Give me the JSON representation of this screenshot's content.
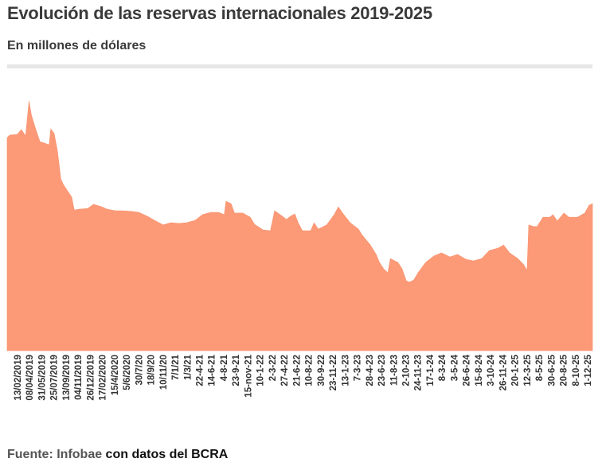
{
  "header": {
    "title": "Evolución de las reservas internacionales 2019-2025",
    "subtitle": "En millones de dólares"
  },
  "footer": {
    "source_prefix": "Fuente: Infobae",
    "source_suffix": " con datos del BCRA"
  },
  "colors": {
    "area": "#fc9a78",
    "text": "#3a3a3a"
  },
  "chart_data": {
    "type": "area",
    "title": "Evolución de las reservas internacionales 2019-2025",
    "subtitle": "En millones de dólares",
    "xlabel": "",
    "ylabel": "Millones de dólares",
    "xlim": [
      2019.0,
      2025.98
    ],
    "ylim": [
      0,
      87600
    ],
    "grid": false,
    "legend": "none",
    "tick_labels": [
      "13/02/2019",
      "08/04/2019",
      "31/05/2019",
      "25/07/2019",
      "13/09/2019",
      "04/11/2019",
      "26/12/2019",
      "17/02/2020",
      "15/4/2020",
      "5/6/2020",
      "30/7/20",
      "18/9/20",
      "10/11/20",
      "7/1/21",
      "1/3/21",
      "22-4-21",
      "14-6-21",
      "4-8-21",
      "23-9-21",
      "15-nov-21",
      "10-1-22",
      "2-3-22",
      "27-4-22",
      "21-6-22",
      "10-8-22",
      "30-9-22",
      "23-11-22",
      "13-1-23",
      "7-3-23",
      "28-4-23",
      "23-6-23",
      "11-8-23",
      "2-10-23",
      "24-11-23",
      "17-1-24",
      "8-3-24",
      "3-5-24",
      "26-6-24",
      "15-8-24",
      "3-10-24",
      "26-11-24",
      "20-1-25",
      "12-3-25",
      "8-5-25",
      "30-6-25",
      "20-8-25",
      "8-10-25",
      "1-12-25"
    ],
    "series": [
      {
        "name": "Reservas internacionales",
        "x": [
          2019.0,
          2019.03,
          2019.12,
          2019.17,
          2019.22,
          2019.26,
          2019.29,
          2019.34,
          2019.39,
          2019.45,
          2019.5,
          2019.52,
          2019.56,
          2019.6,
          2019.64,
          2019.67,
          2019.72,
          2019.77,
          2019.8,
          2019.86,
          2019.96,
          2020.03,
          2020.13,
          2020.19,
          2020.29,
          2020.38,
          2020.48,
          2020.57,
          2020.67,
          2020.76,
          2020.86,
          2020.95,
          2021.05,
          2021.14,
          2021.24,
          2021.33,
          2021.43,
          2021.52,
          2021.59,
          2021.61,
          2021.67,
          2021.71,
          2021.81,
          2021.9,
          2021.95,
          2022.05,
          2022.14,
          2022.19,
          2022.28,
          2022.33,
          2022.38,
          2022.43,
          2022.47,
          2022.52,
          2022.62,
          2022.66,
          2022.71,
          2022.81,
          2022.9,
          2022.95,
          2023.0,
          2023.09,
          2023.19,
          2023.23,
          2023.33,
          2023.4,
          2023.44,
          2023.49,
          2023.54,
          2023.57,
          2023.66,
          2023.71,
          2023.76,
          2023.8,
          2023.85,
          2023.9,
          2023.99,
          2024.09,
          2024.18,
          2024.28,
          2024.37,
          2024.47,
          2024.56,
          2024.66,
          2024.75,
          2024.85,
          2024.92,
          2024.99,
          2025.09,
          2025.16,
          2025.2,
          2025.22,
          2025.28,
          2025.32,
          2025.39,
          2025.47,
          2025.51,
          2025.56,
          2025.64,
          2025.7,
          2025.8,
          2025.89,
          2025.94,
          2025.98
        ],
        "values": [
          65900,
          66700,
          66900,
          68400,
          66400,
          77200,
          72800,
          68600,
          64700,
          64200,
          63700,
          68600,
          67200,
          61700,
          53100,
          51400,
          49400,
          47500,
          43500,
          43800,
          44000,
          45300,
          44500,
          43800,
          43300,
          43300,
          43100,
          42800,
          41600,
          40300,
          38900,
          39600,
          39400,
          39600,
          40300,
          42100,
          42800,
          42800,
          42100,
          46200,
          45500,
          42600,
          42600,
          41300,
          39100,
          37400,
          37100,
          43300,
          41600,
          40600,
          41600,
          42300,
          39600,
          37100,
          37100,
          39600,
          37600,
          38900,
          42100,
          44500,
          42600,
          39600,
          37600,
          35900,
          32700,
          29800,
          27300,
          25300,
          24100,
          28500,
          27300,
          25300,
          21600,
          21200,
          21900,
          24100,
          27300,
          29300,
          30300,
          29000,
          29800,
          28300,
          27800,
          28500,
          31000,
          31700,
          32700,
          30300,
          28500,
          26600,
          24800,
          38900,
          38400,
          38400,
          41300,
          41300,
          42100,
          40100,
          42600,
          41300,
          41300,
          42600,
          45000,
          45500
        ]
      }
    ]
  }
}
